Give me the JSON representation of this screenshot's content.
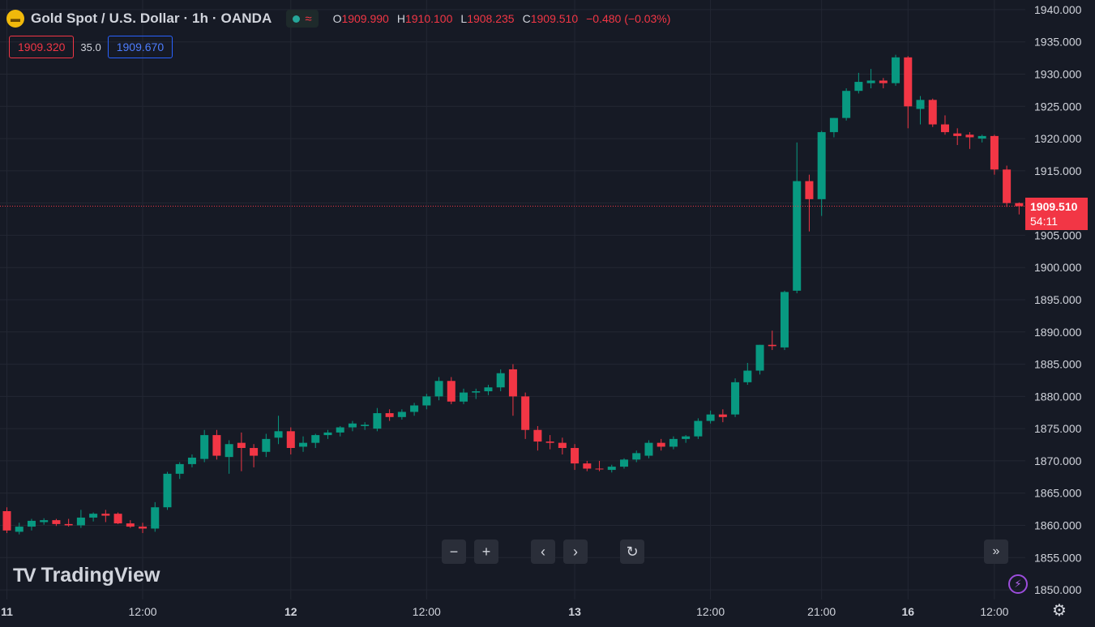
{
  "header": {
    "title": "Gold Spot / U.S. Dollar · 1h · OANDA",
    "symbol_icon": "gold-bars-icon",
    "ohlc": [
      {
        "label": "O",
        "value": "1909.990"
      },
      {
        "label": "H",
        "value": "1910.100"
      },
      {
        "label": "L",
        "value": "1908.235"
      },
      {
        "label": "C",
        "value": "1909.510"
      }
    ],
    "change": "−0.480 (−0.03%)"
  },
  "trade": {
    "sell_price": "1909.320",
    "spread": "35.0",
    "buy_price": "1909.670"
  },
  "current": {
    "price": "1909.510",
    "countdown": "54:11",
    "value": 1909.51
  },
  "brand": {
    "name": "TradingView"
  },
  "colors": {
    "background": "#161a25",
    "up": "#089981",
    "down": "#f23645",
    "grid": "#232733",
    "text": "#d1d4dc"
  },
  "chart_data": {
    "type": "candlestick",
    "ylim": [
      1848.5,
      1941.5
    ],
    "y_ticks": [
      "1940.000",
      "1935.000",
      "1930.000",
      "1925.000",
      "1920.000",
      "1915.000",
      "1910.000",
      "1905.000",
      "1900.000",
      "1895.000",
      "1890.000",
      "1885.000",
      "1880.000",
      "1875.000",
      "1870.000",
      "1865.000",
      "1860.000",
      "1855.000",
      "1850.000"
    ],
    "x_ticks": [
      {
        "label": "11",
        "index": 0
      },
      {
        "label": "12:00",
        "index": 11
      },
      {
        "label": "12",
        "index": 23
      },
      {
        "label": "12:00",
        "index": 34
      },
      {
        "label": "13",
        "index": 46
      },
      {
        "label": "12:00",
        "index": 57
      },
      {
        "label": "21:00",
        "index": 66
      },
      {
        "label": "16",
        "index": 73
      },
      {
        "label": "12:00",
        "index": 80
      }
    ],
    "ohlc": [
      [
        1862.2,
        1862.8,
        1858.8,
        1859.2
      ],
      [
        1859.0,
        1860.4,
        1858.6,
        1859.8
      ],
      [
        1859.8,
        1861.0,
        1859.2,
        1860.7
      ],
      [
        1860.5,
        1861.1,
        1860.1,
        1860.8
      ],
      [
        1860.8,
        1861.0,
        1859.9,
        1860.2
      ],
      [
        1860.2,
        1861.0,
        1859.8,
        1860.0
      ],
      [
        1860.0,
        1862.4,
        1859.6,
        1861.2
      ],
      [
        1861.2,
        1862.0,
        1860.6,
        1861.8
      ],
      [
        1861.8,
        1862.4,
        1860.5,
        1861.5
      ],
      [
        1861.8,
        1862.0,
        1860.2,
        1860.3
      ],
      [
        1860.3,
        1860.8,
        1859.6,
        1859.8
      ],
      [
        1859.8,
        1860.4,
        1858.8,
        1859.5
      ],
      [
        1859.5,
        1863.6,
        1859.0,
        1862.8
      ],
      [
        1862.8,
        1868.3,
        1862.4,
        1868.0
      ],
      [
        1868.0,
        1869.8,
        1867.2,
        1869.5
      ],
      [
        1869.5,
        1871.0,
        1869.0,
        1870.5
      ],
      [
        1870.3,
        1874.8,
        1869.8,
        1874.0
      ],
      [
        1874.0,
        1874.8,
        1870.2,
        1870.8
      ],
      [
        1870.6,
        1873.2,
        1868.0,
        1872.6
      ],
      [
        1872.8,
        1874.4,
        1868.4,
        1872.0
      ],
      [
        1872.0,
        1872.6,
        1869.0,
        1870.8
      ],
      [
        1871.4,
        1874.2,
        1870.6,
        1873.4
      ],
      [
        1873.6,
        1877.0,
        1872.6,
        1874.6
      ],
      [
        1874.6,
        1875.2,
        1871.0,
        1872.0
      ],
      [
        1872.2,
        1873.8,
        1871.4,
        1872.8
      ],
      [
        1872.8,
        1874.2,
        1872.0,
        1874.0
      ],
      [
        1874.0,
        1874.8,
        1873.4,
        1874.4
      ],
      [
        1874.4,
        1875.4,
        1873.8,
        1875.2
      ],
      [
        1875.2,
        1876.2,
        1874.6,
        1875.8
      ],
      [
        1875.4,
        1876.0,
        1874.8,
        1875.6
      ],
      [
        1875.0,
        1878.2,
        1874.6,
        1877.4
      ],
      [
        1877.4,
        1878.0,
        1876.2,
        1876.8
      ],
      [
        1876.8,
        1878.0,
        1876.4,
        1877.6
      ],
      [
        1877.6,
        1879.0,
        1877.0,
        1878.6
      ],
      [
        1878.6,
        1880.4,
        1878.0,
        1880.0
      ],
      [
        1880.0,
        1883.0,
        1879.4,
        1882.4
      ],
      [
        1882.4,
        1883.0,
        1878.8,
        1879.2
      ],
      [
        1879.2,
        1881.2,
        1878.8,
        1880.6
      ],
      [
        1880.6,
        1881.2,
        1879.6,
        1880.8
      ],
      [
        1880.8,
        1881.8,
        1880.2,
        1881.4
      ],
      [
        1881.4,
        1884.2,
        1880.8,
        1883.6
      ],
      [
        1884.2,
        1885.0,
        1877.0,
        1880.0
      ],
      [
        1880.0,
        1880.6,
        1873.4,
        1874.8
      ],
      [
        1874.8,
        1875.4,
        1871.6,
        1873.0
      ],
      [
        1873.0,
        1874.0,
        1871.8,
        1872.8
      ],
      [
        1872.8,
        1873.6,
        1871.0,
        1872.0
      ],
      [
        1872.0,
        1872.6,
        1868.6,
        1869.6
      ],
      [
        1869.6,
        1870.0,
        1868.4,
        1868.8
      ],
      [
        1868.8,
        1870.0,
        1868.4,
        1868.7
      ],
      [
        1868.6,
        1869.4,
        1868.2,
        1869.1
      ],
      [
        1869.1,
        1870.4,
        1868.8,
        1870.2
      ],
      [
        1870.2,
        1871.6,
        1869.8,
        1871.2
      ],
      [
        1870.8,
        1873.2,
        1870.4,
        1872.8
      ],
      [
        1872.8,
        1873.4,
        1871.6,
        1872.2
      ],
      [
        1872.2,
        1873.8,
        1871.8,
        1873.4
      ],
      [
        1873.4,
        1874.0,
        1872.8,
        1873.8
      ],
      [
        1873.8,
        1876.6,
        1873.4,
        1876.2
      ],
      [
        1876.2,
        1877.8,
        1875.8,
        1877.2
      ],
      [
        1877.2,
        1878.0,
        1876.0,
        1876.8
      ],
      [
        1877.2,
        1882.8,
        1876.8,
        1882.2
      ],
      [
        1882.2,
        1885.2,
        1881.8,
        1884.0
      ],
      [
        1884.0,
        1888.0,
        1883.4,
        1888.0
      ],
      [
        1888.0,
        1890.2,
        1887.2,
        1887.8
      ],
      [
        1887.6,
        1896.4,
        1887.2,
        1896.2
      ],
      [
        1896.4,
        1919.4,
        1896.0,
        1913.4
      ],
      [
        1913.4,
        1914.4,
        1905.6,
        1910.6
      ],
      [
        1910.6,
        1921.2,
        1908.0,
        1921.0
      ],
      [
        1921.0,
        1923.2,
        1920.2,
        1923.2
      ],
      [
        1923.2,
        1927.8,
        1922.8,
        1927.4
      ],
      [
        1927.4,
        1930.2,
        1927.0,
        1928.8
      ],
      [
        1928.6,
        1930.8,
        1927.8,
        1929.0
      ],
      [
        1929.0,
        1929.4,
        1927.8,
        1928.6
      ],
      [
        1928.6,
        1933.0,
        1928.2,
        1932.6
      ],
      [
        1932.6,
        1932.8,
        1921.6,
        1925.0
      ],
      [
        1924.6,
        1926.6,
        1922.2,
        1926.0
      ],
      [
        1926.0,
        1926.2,
        1921.8,
        1922.2
      ],
      [
        1922.2,
        1923.6,
        1920.6,
        1921.0
      ],
      [
        1920.8,
        1921.6,
        1919.0,
        1920.4
      ],
      [
        1920.6,
        1921.0,
        1918.4,
        1920.2
      ],
      [
        1920.0,
        1920.6,
        1919.4,
        1920.4
      ],
      [
        1920.4,
        1920.6,
        1914.4,
        1915.2
      ],
      [
        1915.2,
        1915.8,
        1909.4,
        1910.0
      ],
      [
        1909.99,
        1910.1,
        1908.235,
        1909.51
      ]
    ]
  }
}
